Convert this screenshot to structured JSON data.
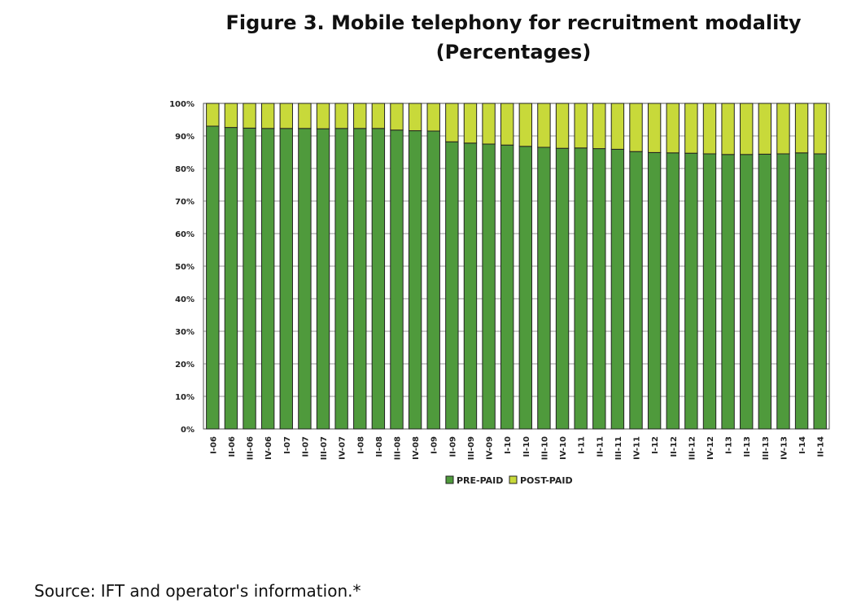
{
  "title_line1": "Figure 3. Mobile telephony for recruitment modality",
  "title_line2": "(Percentages)",
  "source": "Source: IFT and operator's information.*",
  "colors": {
    "prepaid": "#4f9a3c",
    "postpaid": "#c8d93a",
    "border": "#222222"
  },
  "chart_data": {
    "type": "bar",
    "stacked": true,
    "title": "Figure 3. Mobile telephony for recruitment modality",
    "subtitle": "(Percentages)",
    "xlabel": "",
    "ylabel": "",
    "ylim": [
      0,
      100
    ],
    "y_ticks": [
      "0%",
      "10%",
      "20%",
      "30%",
      "40%",
      "50%",
      "60%",
      "70%",
      "80%",
      "90%",
      "100%"
    ],
    "categories": [
      "I-06",
      "II-06",
      "III-06",
      "IV-06",
      "I-07",
      "II-07",
      "III-07",
      "IV-07",
      "I-08",
      "II-08",
      "III-08",
      "IV-08",
      "I-09",
      "II-09",
      "III-09",
      "IV-09",
      "I-10",
      "II-10",
      "III-10",
      "IV-10",
      "I-11",
      "II-11",
      "III-11",
      "IV-11",
      "I-12",
      "II-12",
      "III-12",
      "IV-12",
      "I-13",
      "II-13",
      "III-13",
      "IV-13",
      "I-14",
      "II-14"
    ],
    "series": [
      {
        "name": "PRE-PAID",
        "values": [
          93.0,
          92.6,
          92.4,
          92.3,
          92.3,
          92.3,
          92.2,
          92.3,
          92.3,
          92.3,
          91.8,
          91.6,
          91.5,
          88.2,
          87.8,
          87.5,
          87.2,
          86.8,
          86.5,
          86.2,
          86.3,
          86.1,
          85.9,
          85.2,
          84.9,
          84.8,
          84.7,
          84.5,
          84.3,
          84.3,
          84.4,
          84.5,
          84.8,
          84.5
        ]
      },
      {
        "name": "POST-PAID",
        "values": [
          7.0,
          7.4,
          7.6,
          7.7,
          7.7,
          7.7,
          7.8,
          7.7,
          7.7,
          7.7,
          8.2,
          8.4,
          8.5,
          11.8,
          12.2,
          12.5,
          12.8,
          13.2,
          13.5,
          13.8,
          13.7,
          13.9,
          14.1,
          14.8,
          15.1,
          15.2,
          15.3,
          15.5,
          15.7,
          15.7,
          15.6,
          15.5,
          15.2,
          15.5
        ]
      }
    ],
    "grid": true,
    "legend": "bottom"
  }
}
